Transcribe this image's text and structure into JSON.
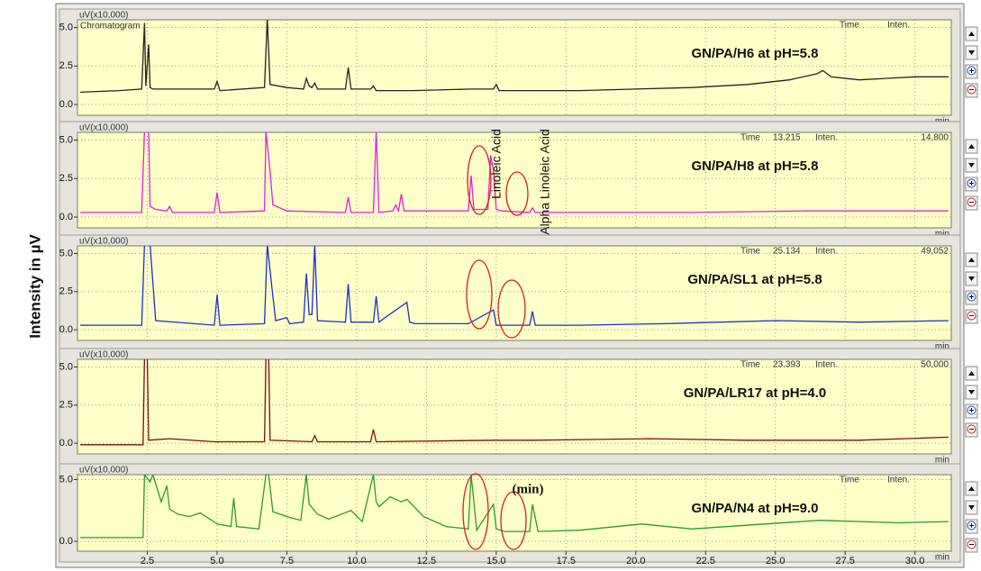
{
  "ylabel": "Intensity in µV",
  "annotations": [
    "Linoleic Acid",
    "Alpha Linoleic Acid",
    "(min)"
  ],
  "chart_data": [
    {
      "type": "line",
      "unit_label": "uV(x10,000)",
      "panel_label": "Chromatogram",
      "title": "GN/PA/H6 at pH=5.8",
      "cursor_time_label": "Time",
      "cursor_inten_label": "Inten.",
      "xlabel": "min",
      "color": "#222222",
      "x": [
        0.1,
        1.5,
        2.3,
        2.4,
        2.45,
        2.55,
        2.6,
        2.7,
        4.9,
        5.0,
        5.1,
        6.7,
        6.8,
        6.9,
        7.5,
        8.1,
        8.2,
        8.3,
        8.4,
        8.5,
        8.6,
        9.6,
        9.7,
        9.8,
        10.5,
        10.6,
        10.7,
        12,
        14.1,
        14.9,
        15,
        15.1,
        16.3,
        18,
        20,
        22,
        24,
        25.5,
        26.5,
        26.7,
        27,
        28,
        29,
        30,
        31.2
      ],
      "values": [
        0.8,
        0.9,
        1.0,
        5.3,
        1.2,
        3.9,
        1.1,
        1.0,
        1.0,
        1.5,
        0.9,
        1.1,
        5.6,
        1.3,
        1.1,
        1.0,
        1.7,
        1.2,
        1.1,
        1.4,
        1.0,
        1.0,
        2.4,
        1.0,
        1.0,
        1.2,
        0.9,
        0.9,
        1.0,
        1.0,
        1.3,
        0.9,
        0.9,
        0.9,
        1.0,
        1.1,
        1.3,
        1.6,
        2.0,
        2.2,
        1.8,
        1.6,
        1.7,
        1.8,
        1.8
      ],
      "xlim": [
        0,
        31.3
      ],
      "ylim": [
        -0.7,
        5.5
      ],
      "yticks": [
        {
          "value": 0,
          "label": "0.0"
        },
        2.5,
        {
          "value": 5,
          "label": "5.0"
        }
      ],
      "grid": true
    },
    {
      "type": "line",
      "unit_label": "uV(x10,000)",
      "title": "GN/PA/H8 at pH=5.8",
      "cursor_time_label": "Time",
      "cursor_time": "13.215",
      "cursor_inten_label": "Inten.",
      "cursor_inten": "14,800",
      "xlabel": "min",
      "color": "#e81ed8",
      "x": [
        0.1,
        2.3,
        2.4,
        2.55,
        2.6,
        2.8,
        3.2,
        3.3,
        3.4,
        4.9,
        5.0,
        5.1,
        6.7,
        6.75,
        6.9,
        7.0,
        7.5,
        9.6,
        9.7,
        9.8,
        10.6,
        10.7,
        10.8,
        11.3,
        11.4,
        11.5,
        11.6,
        11.7,
        14.0,
        14.1,
        14.2,
        14.7,
        14.8,
        14.9,
        15.0,
        15.2,
        16.2,
        16.3,
        16.4,
        18,
        22,
        26,
        31.2
      ],
      "values": [
        0.3,
        0.3,
        5.6,
        5.6,
        0.7,
        0.5,
        0.4,
        0.7,
        0.3,
        0.3,
        1.6,
        0.3,
        0.4,
        5.6,
        3.0,
        0.8,
        0.4,
        0.3,
        1.3,
        0.3,
        0.3,
        5.6,
        0.3,
        0.4,
        0.8,
        0.4,
        1.5,
        0.4,
        0.4,
        2.7,
        0.5,
        0.5,
        4.0,
        3.0,
        0.5,
        0.4,
        0.3,
        0.6,
        0.3,
        0.3,
        0.3,
        0.4,
        0.4
      ],
      "xlim": [
        0,
        31.3
      ],
      "ylim": [
        -0.7,
        5.5
      ],
      "yticks": [
        {
          "value": 0,
          "label": "0.0"
        },
        2.5,
        {
          "value": 5,
          "label": "5.0"
        }
      ],
      "grid": true
    },
    {
      "type": "line",
      "unit_label": "uV(x10,000)",
      "title": "GN/PA/SL1 at pH=5.8",
      "cursor_time_label": "Time",
      "cursor_time": "25.134",
      "cursor_inten_label": "Inten.",
      "cursor_inten": "49,052",
      "xlabel": "min",
      "color": "#1a2fd0",
      "x": [
        0.1,
        2.3,
        2.4,
        2.6,
        2.8,
        4.9,
        5.0,
        5.1,
        6.7,
        6.8,
        6.95,
        7.1,
        7.5,
        7.6,
        8.1,
        8.2,
        8.3,
        8.4,
        8.5,
        8.6,
        9.6,
        9.7,
        9.8,
        10.6,
        10.7,
        10.8,
        11.1,
        11.8,
        11.9,
        12.1,
        14.0,
        14.9,
        15.0,
        16.2,
        16.3,
        16.4,
        18,
        21,
        25,
        28,
        31.2
      ],
      "values": [
        0.3,
        0.3,
        5.6,
        5.6,
        0.6,
        0.3,
        2.3,
        0.3,
        0.4,
        5.6,
        3.0,
        0.6,
        0.8,
        0.4,
        0.5,
        3.7,
        1.0,
        1.0,
        5.6,
        0.6,
        0.5,
        3.0,
        0.5,
        0.5,
        2.2,
        0.5,
        0.9,
        1.8,
        0.5,
        0.4,
        0.4,
        1.3,
        0.3,
        0.3,
        1.2,
        0.3,
        0.3,
        0.4,
        0.6,
        0.5,
        0.6
      ],
      "xlim": [
        0,
        31.3
      ],
      "ylim": [
        -0.7,
        5.5
      ],
      "yticks": [
        {
          "value": 0,
          "label": "0.0"
        },
        2.5,
        {
          "value": 5,
          "label": "5.0"
        }
      ],
      "grid": true
    },
    {
      "type": "line",
      "unit_label": "uV(x10,000)",
      "title": "GN/PA/LR17 at pH=4.0",
      "cursor_time_label": "Time",
      "cursor_time": "23.393",
      "cursor_inten_label": "Inten.",
      "cursor_inten": "50,000",
      "xlabel": "min",
      "color": "#7a1010",
      "x": [
        0.1,
        2.35,
        2.4,
        2.5,
        2.55,
        3.3,
        4.9,
        6.7,
        6.75,
        6.85,
        6.9,
        8.4,
        8.5,
        8.6,
        10.5,
        10.6,
        10.7,
        14.9,
        16.3,
        20.5,
        24,
        28,
        31.2
      ],
      "values": [
        -0.1,
        -0.1,
        5.6,
        5.6,
        0.2,
        0.3,
        0.1,
        0.1,
        5.6,
        5.6,
        0.2,
        0.1,
        0.5,
        0.1,
        0.1,
        0.9,
        0.1,
        0.2,
        0.2,
        0.3,
        0.2,
        0.2,
        0.4
      ],
      "xlim": [
        0,
        31.3
      ],
      "ylim": [
        -0.7,
        5.5
      ],
      "yticks": [
        {
          "value": 0,
          "label": "0.0"
        },
        2.5,
        {
          "value": 5,
          "label": "5.0"
        }
      ],
      "grid": true
    },
    {
      "type": "line",
      "unit_label": "uV(x10,000)",
      "title": "GN/PA/N4 at pH=9.0",
      "cursor_time_label": "Time",
      "cursor_inten_label": "Inten.",
      "xlabel": "min",
      "color": "#2a9a2a",
      "x": [
        0.1,
        2.35,
        2.4,
        2.6,
        2.7,
        3.0,
        3.2,
        3.3,
        3.6,
        4.0,
        4.4,
        5.0,
        5.5,
        5.6,
        5.7,
        6.5,
        6.75,
        6.85,
        7.0,
        7.5,
        8.0,
        8.2,
        8.3,
        8.6,
        9.0,
        9.8,
        10.2,
        10.6,
        10.7,
        10.8,
        11.2,
        11.6,
        11.8,
        12.4,
        13.2,
        14.0,
        14.1,
        14.3,
        14.9,
        15.0,
        15.3,
        16.2,
        16.3,
        16.5,
        18,
        20.2,
        22,
        26.6,
        29.4,
        31.2
      ],
      "values": [
        0.3,
        0.3,
        5.4,
        4.8,
        5.4,
        3.2,
        4.5,
        2.6,
        2.2,
        2.0,
        2.3,
        1.4,
        1.2,
        3.5,
        1.2,
        1.0,
        5.4,
        5.4,
        2.4,
        2.0,
        1.7,
        5.4,
        3.0,
        2.2,
        1.8,
        2.5,
        1.6,
        5.4,
        3.2,
        2.8,
        3.6,
        3.2,
        3.4,
        2.0,
        1.2,
        1.0,
        5.4,
        0.9,
        3.0,
        1.0,
        0.8,
        0.8,
        3.0,
        0.8,
        0.9,
        1.4,
        1.0,
        1.7,
        1.5,
        1.6
      ],
      "xlim": [
        0,
        31.3
      ],
      "ylim": [
        -0.8,
        5.4
      ],
      "yticks": [
        {
          "value": 0,
          "label": "0.0"
        },
        {
          "value": 5,
          "label": "5.0"
        }
      ],
      "grid": true,
      "xticks": [
        2.5,
        {
          "value": 5,
          "label": "5.0"
        },
        7.5,
        {
          "value": 10,
          "label": "10.0"
        },
        12.5,
        {
          "value": 15,
          "label": "15.0"
        },
        17.5,
        {
          "value": 20,
          "label": "20.0"
        },
        22.5,
        {
          "value": 25,
          "label": "25.0"
        },
        27.5,
        {
          "value": 30,
          "label": "30.0"
        }
      ]
    }
  ]
}
